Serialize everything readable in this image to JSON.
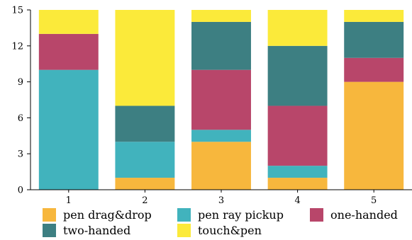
{
  "chart_data": {
    "type": "bar",
    "stacked": true,
    "categories": [
      "1",
      "2",
      "3",
      "4",
      "5"
    ],
    "series": [
      {
        "name": "pen drag&drop",
        "color": "#F7B73D",
        "values": [
          0,
          1,
          4,
          1,
          9
        ]
      },
      {
        "name": "pen ray pickup",
        "color": "#41B3BD",
        "values": [
          10,
          3,
          1,
          1,
          0
        ]
      },
      {
        "name": "one-handed",
        "color": "#B8466A",
        "values": [
          3,
          0,
          5,
          5,
          2
        ]
      },
      {
        "name": "two-handed",
        "color": "#3D7F82",
        "values": [
          0,
          3,
          4,
          5,
          3
        ]
      },
      {
        "name": "touch&pen",
        "color": "#FBEA3A",
        "values": [
          2,
          8,
          1,
          3,
          1
        ]
      }
    ],
    "ylim": [
      0,
      15
    ],
    "yticks": [
      "0",
      "3",
      "6",
      "9",
      "12",
      "15"
    ],
    "legend_position": "bottom"
  }
}
